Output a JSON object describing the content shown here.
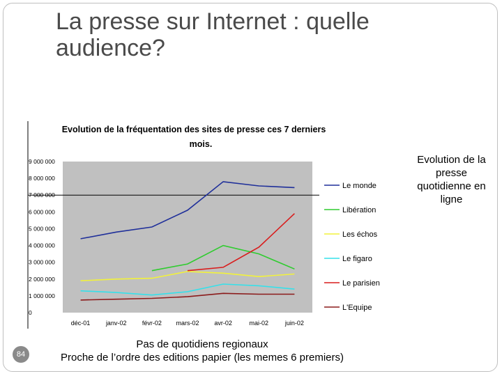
{
  "slide": {
    "title": "La presse sur Internet : quelle audience?",
    "side_note": "Evolution de la presse quotidienne en ligne",
    "footer_line1": "Pas de quotidiens regionaux",
    "footer_line2": "Proche de l’ordre des editions papier (les memes 6 premiers)",
    "page_number": "84"
  },
  "chart_data": {
    "type": "line",
    "title": "Evolution de la fréquentation des sites de presse ces 7 derniers mois.",
    "xlabel": "",
    "ylabel": "",
    "categories": [
      "déc-01",
      "janv-02",
      "févr-02",
      "mars-02",
      "avr-02",
      "mai-02",
      "juin-02"
    ],
    "ylim": [
      0,
      9000000
    ],
    "yticks": [
      "0",
      "1 000 000",
      "2 000 000",
      "3 000 000",
      "4 000 000",
      "5 000 000",
      "6 000 000",
      "7 000 000",
      "8 000 000",
      "9 000 000"
    ],
    "grid": false,
    "legend_position": "right",
    "series": [
      {
        "name": "Le monde",
        "color": "#1f2f9a",
        "values": [
          4400000,
          4800000,
          5100000,
          6100000,
          7800000,
          7550000,
          7450000
        ]
      },
      {
        "name": "Libération",
        "color": "#2ecc2e",
        "values": [
          null,
          null,
          2500000,
          2900000,
          4000000,
          3500000,
          2600000
        ]
      },
      {
        "name": "Les échos",
        "color": "#f2f23a",
        "values": [
          1900000,
          2000000,
          2050000,
          2450000,
          2350000,
          2150000,
          2300000
        ]
      },
      {
        "name": "Le figaro",
        "color": "#35e0ea",
        "values": [
          1300000,
          1200000,
          1050000,
          1250000,
          1700000,
          1600000,
          1400000
        ]
      },
      {
        "name": "Le parisien",
        "color": "#d91c1c",
        "values": [
          null,
          null,
          null,
          2500000,
          2700000,
          3900000,
          5900000
        ]
      },
      {
        "name": "L'Equipe",
        "color": "#8b1a1a",
        "values": [
          750000,
          800000,
          850000,
          950000,
          1150000,
          1100000,
          1100000
        ]
      }
    ]
  }
}
